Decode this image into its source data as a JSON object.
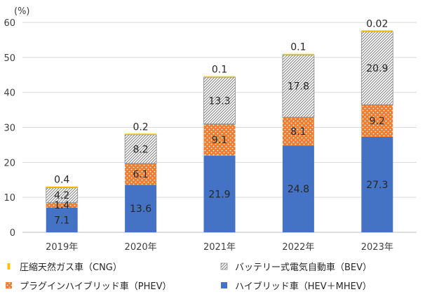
{
  "chart_data": {
    "type": "bar",
    "stacked": true,
    "y_unit": "(%)",
    "ylim": [
      0,
      60
    ],
    "yticks": [
      0,
      10,
      20,
      30,
      40,
      50,
      60
    ],
    "grid": true,
    "legend_position": "bottom",
    "categories": [
      "2019年",
      "2020年",
      "2021年",
      "2022年",
      "2023年"
    ],
    "series": [
      {
        "key": "hev",
        "name": "ハイブリッド車（HEV＋MHEV）",
        "color": "#4472C4",
        "pattern": "solid",
        "values": [
          7.1,
          13.6,
          21.9,
          24.8,
          27.3
        ],
        "labels": [
          "7.1",
          "13.6",
          "21.9",
          "24.8",
          "27.3"
        ]
      },
      {
        "key": "phev",
        "name": "プラグインハイブリッド車（PHEV）",
        "color": "#ED7D31",
        "pattern": "dots",
        "values": [
          1.4,
          6.1,
          9.1,
          8.1,
          9.2
        ],
        "labels": [
          "1.4",
          "6.1",
          "9.1",
          "8.1",
          "9.2"
        ]
      },
      {
        "key": "bev",
        "name": "バッテリー式電気自動車（BEV）",
        "color": "#A5A5A5",
        "pattern": "hatch",
        "values": [
          4.2,
          8.2,
          13.3,
          17.8,
          20.9
        ],
        "labels": [
          "4.2",
          "8.2",
          "13.3",
          "17.8",
          "20.9"
        ]
      },
      {
        "key": "cng",
        "name": "圧縮天然ガス車（CNG）",
        "color": "#FFC000",
        "pattern": "solid",
        "values": [
          0.4,
          0.2,
          0.1,
          0.1,
          0.02
        ],
        "labels": [
          "0.4",
          "0.2",
          "0.1",
          "0.1",
          "0.02"
        ]
      }
    ],
    "legend_order": [
      "cng",
      "bev",
      "phev",
      "hev"
    ]
  }
}
